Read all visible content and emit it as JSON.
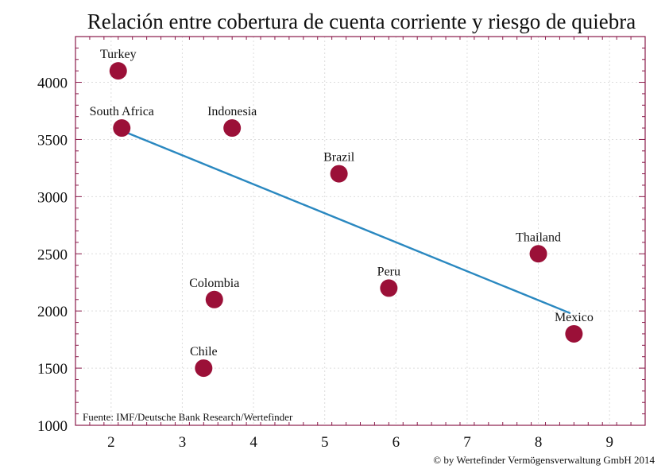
{
  "chart_data": {
    "type": "scatter",
    "title": "Relación entre cobertura de cuenta corriente y riesgo de quiebra",
    "xlabel": "",
    "ylabel": "",
    "xlim": [
      1.5,
      9.5
    ],
    "ylim": [
      1000,
      4400
    ],
    "xticks": [
      2,
      3,
      4,
      5,
      6,
      7,
      8,
      9
    ],
    "yticks": [
      1000,
      1500,
      2000,
      2500,
      3000,
      3500,
      4000
    ],
    "grid": true,
    "points": [
      {
        "label": "Turkey",
        "x": 2.1,
        "y": 4100
      },
      {
        "label": "South Africa",
        "x": 2.15,
        "y": 3600
      },
      {
        "label": "Indonesia",
        "x": 3.7,
        "y": 3600
      },
      {
        "label": "Brazil",
        "x": 5.2,
        "y": 3200
      },
      {
        "label": "Thailand",
        "x": 8.0,
        "y": 2500
      },
      {
        "label": "Peru",
        "x": 5.9,
        "y": 2200
      },
      {
        "label": "Colombia",
        "x": 3.45,
        "y": 2100
      },
      {
        "label": "Mexico",
        "x": 8.5,
        "y": 1800
      },
      {
        "label": "Chile",
        "x": 3.3,
        "y": 1500
      }
    ],
    "trendline": {
      "x": [
        2.1,
        8.45
      ],
      "y": [
        3590,
        1980
      ]
    },
    "source": "Fuente: IMF/Deutsche Bank Research/Wertefinder",
    "copyright": "© by Wertefinder Vermögensverwaltung GmbH 2014",
    "colors": {
      "point": "#9b1038",
      "trendline": "#2a88c0",
      "frame": "#8a1a4a",
      "grid": "#dddddd"
    }
  }
}
